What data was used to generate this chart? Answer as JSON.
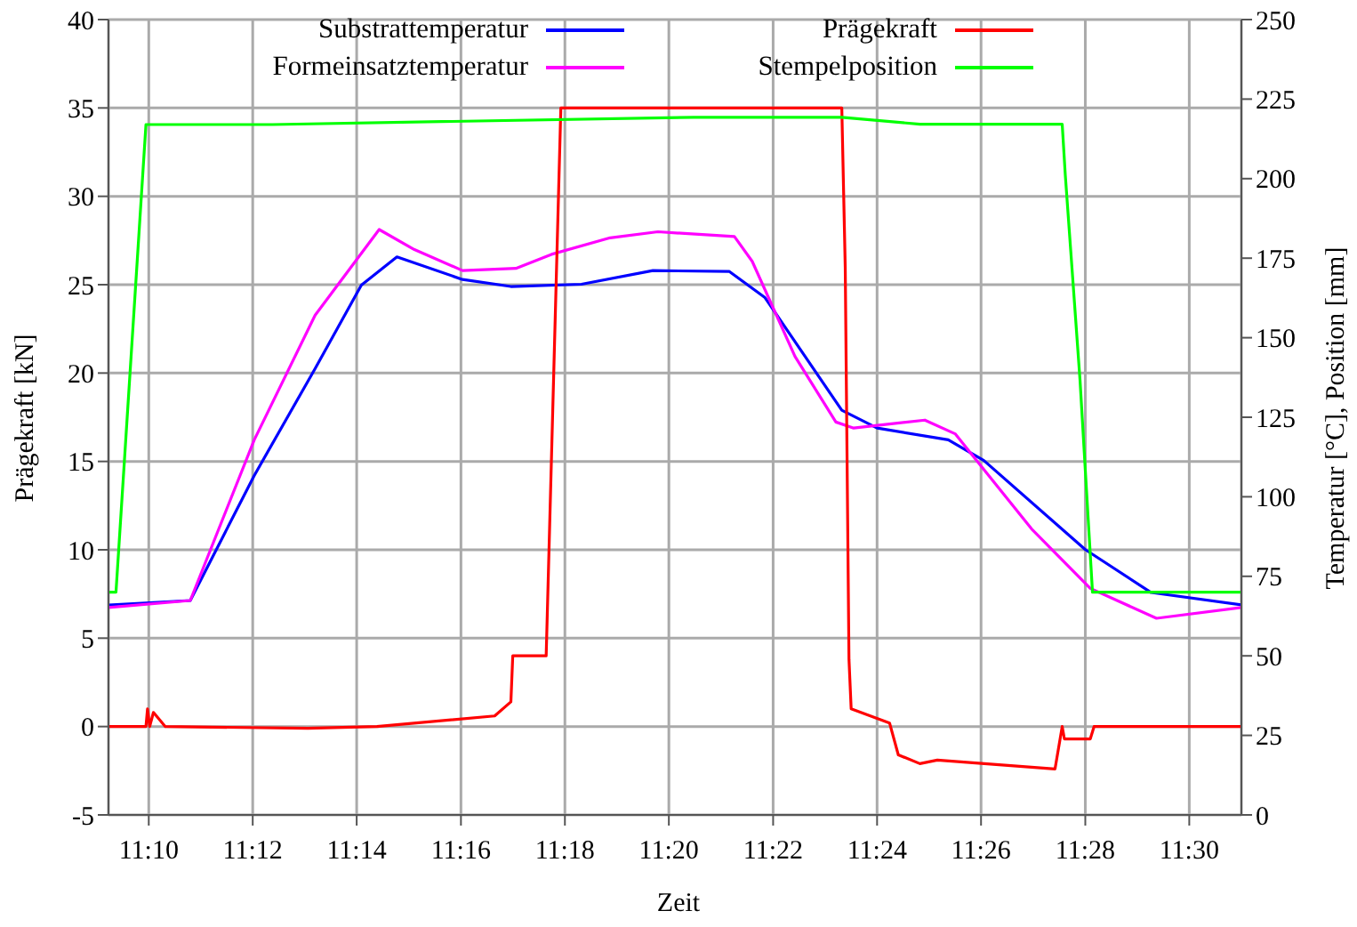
{
  "chart_data": {
    "type": "line",
    "xlabel": "Zeit",
    "ylabel": "Prägekraft [kN]",
    "y2label": "Temperatur [°C], Position [mm]",
    "xlim": [
      11.1538,
      11.5167
    ],
    "xticks": [
      {
        "value": 11.1667,
        "label": "11:10"
      },
      {
        "value": 11.2,
        "label": "11:12"
      },
      {
        "value": 11.2333,
        "label": "11:14"
      },
      {
        "value": 11.2667,
        "label": "11:16"
      },
      {
        "value": 11.3,
        "label": "11:18"
      },
      {
        "value": 11.3333,
        "label": "11:20"
      },
      {
        "value": 11.3667,
        "label": "11:22"
      },
      {
        "value": 11.4,
        "label": "11:24"
      },
      {
        "value": 11.4333,
        "label": "11:26"
      },
      {
        "value": 11.4667,
        "label": "11:28"
      },
      {
        "value": 11.5,
        "label": "11:30"
      }
    ],
    "ylim": [
      -5,
      40
    ],
    "yticks": [
      -5,
      0,
      5,
      10,
      15,
      20,
      25,
      30,
      35,
      40
    ],
    "y2lim": [
      0,
      250
    ],
    "y2ticks": [
      0,
      25,
      50,
      75,
      100,
      125,
      150,
      175,
      200,
      225,
      250
    ],
    "grid": true,
    "legend": "top",
    "marker": "none",
    "line_style": "solid",
    "series": [
      {
        "name": "Substrattemperatur",
        "color": "#0000ff",
        "axis": "y2",
        "x": [
          11.1538,
          11.18,
          11.2005,
          11.22,
          11.2348,
          11.2462,
          11.2672,
          11.2827,
          11.3053,
          11.3282,
          11.3527,
          11.364,
          11.3887,
          11.4,
          11.4228,
          11.4342,
          11.4667,
          11.4878,
          11.5167
        ],
        "values": [
          66.0,
          67.4,
          106.7,
          140.3,
          166.5,
          175.4,
          168.3,
          166.1,
          166.8,
          171.1,
          170.8,
          162.7,
          127.2,
          121.6,
          117.9,
          111.4,
          83.4,
          69.9,
          66.0
        ]
      },
      {
        "name": "Formeinsatztemperatur",
        "color": "#ff00ff",
        "axis": "y2",
        "x": [
          11.1538,
          11.18,
          11.2005,
          11.22,
          11.2405,
          11.2518,
          11.2672,
          11.2843,
          11.2957,
          11.3145,
          11.3298,
          11.3543,
          11.36,
          11.3737,
          11.3868,
          11.3925,
          11.4153,
          11.425,
          11.4495,
          11.4683,
          11.4895,
          11.5167
        ],
        "values": [
          65.2,
          67.4,
          117.9,
          157.1,
          184.0,
          177.7,
          171.1,
          171.8,
          176.2,
          181.4,
          183.3,
          181.8,
          174.0,
          144.1,
          123.5,
          121.6,
          124.1,
          119.8,
          89.9,
          71.2,
          61.8,
          65.2
        ]
      },
      {
        "name": "Prägekraft",
        "color": "#ff0000",
        "axis": "y",
        "x": [
          11.1538,
          11.1658,
          11.1663,
          11.167,
          11.1682,
          11.172,
          11.2177,
          11.2398,
          11.2775,
          11.2827,
          11.2833,
          11.294,
          11.2987,
          11.3887,
          11.3898,
          11.391,
          11.3917,
          11.404,
          11.4068,
          11.4137,
          11.4193,
          11.457,
          11.4593,
          11.46,
          11.4683,
          11.4695,
          11.5167
        ],
        "values": [
          0,
          0,
          1.0,
          0,
          0.8,
          0,
          -0.1,
          0,
          0.6,
          1.4,
          4.0,
          4.0,
          35,
          35,
          26,
          3.8,
          1.0,
          0.2,
          -1.6,
          -2.1,
          -1.9,
          -2.4,
          0,
          -0.7,
          -0.7,
          0,
          0
        ]
      },
      {
        "name": "Stempelposition",
        "color": "#00ff00",
        "axis": "y2",
        "x": [
          11.1538,
          11.1562,
          11.1658,
          11.2063,
          11.3413,
          11.3887,
          11.4137,
          11.4593,
          11.4603,
          11.465,
          11.469,
          11.5167
        ],
        "values": [
          70,
          70,
          217,
          217,
          219.3,
          219.3,
          217.1,
          217.1,
          201,
          136.8,
          70,
          70
        ]
      }
    ]
  }
}
